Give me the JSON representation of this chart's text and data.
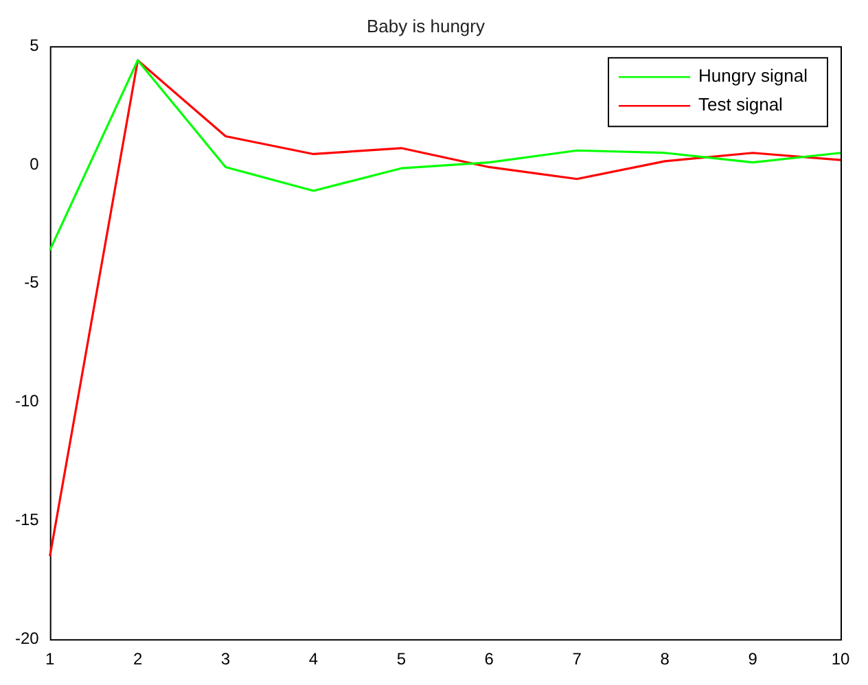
{
  "chart_data": {
    "type": "line",
    "title": "Baby is hungry",
    "x": [
      1,
      2,
      3,
      4,
      5,
      6,
      7,
      8,
      9,
      10
    ],
    "series": [
      {
        "name": "Hungry signal",
        "color": "#00ff00",
        "values": [
          -3.6,
          4.4,
          -0.1,
          -1.1,
          -0.15,
          0.1,
          0.6,
          0.5,
          0.1,
          0.5
        ]
      },
      {
        "name": "Test signal",
        "color": "#ff0000",
        "values": [
          -16.5,
          4.4,
          1.2,
          0.45,
          0.7,
          -0.1,
          -0.6,
          0.15,
          0.5,
          0.2
        ]
      }
    ],
    "xlim": [
      1,
      10
    ],
    "xticks": [
      1,
      2,
      3,
      4,
      5,
      6,
      7,
      8,
      9,
      10
    ],
    "ylim": [
      -20,
      5
    ],
    "yticks": [
      -20,
      -15,
      -10,
      -5,
      0,
      5
    ],
    "grid": false,
    "legend": "top right",
    "marker": "none",
    "line_style": "solid"
  }
}
